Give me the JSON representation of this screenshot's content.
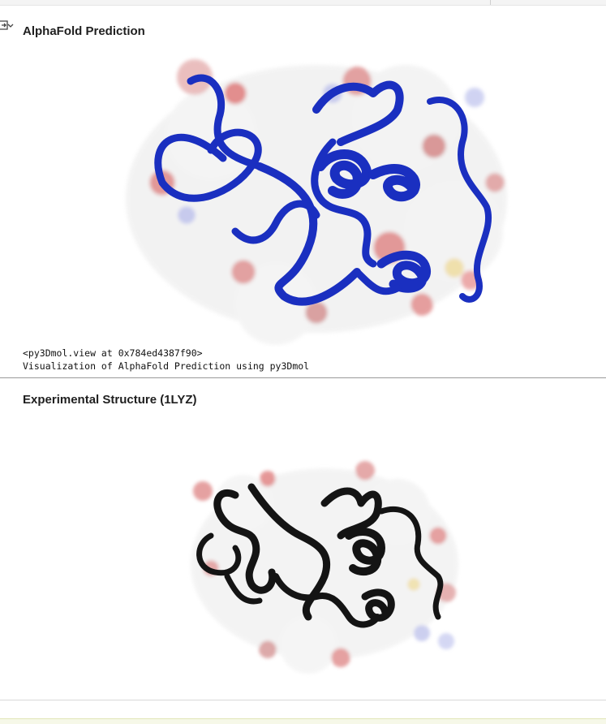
{
  "sections": {
    "alphafold": {
      "title": "AlphaFold Prediction",
      "repr_line": "<py3Dmol.view at 0x784ed4387f90>",
      "caption": "Visualization of AlphaFold Prediction using py3Dmol",
      "cartoon_color": "#1a2fc0"
    },
    "experimental": {
      "title": "Experimental Structure (1LYZ)",
      "cartoon_color": "#141414"
    }
  },
  "icons": {
    "output_toggle": "output-toggle-icon"
  }
}
